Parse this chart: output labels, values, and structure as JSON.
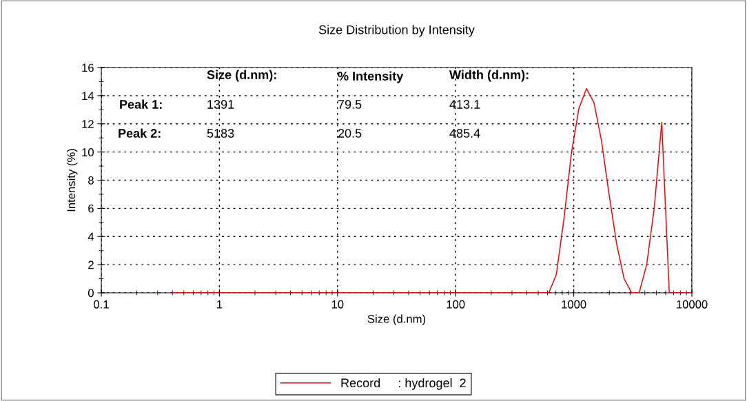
{
  "chart_data": {
    "type": "line",
    "title": "Size Distribution by Intensity",
    "xlabel": "Size (d.nm)",
    "ylabel": "Intensity (%)",
    "x": [
      0.4,
      615,
      712,
      825,
      955,
      1106,
      1281,
      1484,
      1718,
      1990,
      2305,
      2669,
      3091,
      3580,
      4145,
      4801,
      5560,
      6439,
      10000
    ],
    "series": [
      {
        "name": "Record     : hydrogel  2",
        "color": "#ff0000",
        "values": [
          0,
          0,
          1.3,
          5.2,
          9.9,
          13.1,
          14.5,
          13.5,
          10.8,
          7.0,
          3.5,
          1.0,
          0,
          0,
          2.0,
          6.0,
          12.1,
          0,
          0
        ]
      }
    ],
    "log": "x",
    "xlim": [
      0.1,
      10000
    ],
    "xticks": [
      0.1,
      1,
      10,
      100,
      1000,
      10000
    ],
    "ylim": [
      0,
      16
    ],
    "yticks": [
      0,
      2,
      4,
      6,
      8,
      10,
      12,
      14,
      16
    ],
    "grid": true,
    "legend": "bottom",
    "marker": "none",
    "line_style": "solid",
    "annotations": [
      "Size (d.nm):",
      "% Intensity",
      "Width (d.nm):",
      "Peak 1:",
      "1391",
      "79.5",
      "413.1",
      "Peak 2:",
      "5183",
      "20.5",
      "485.4"
    ]
  }
}
